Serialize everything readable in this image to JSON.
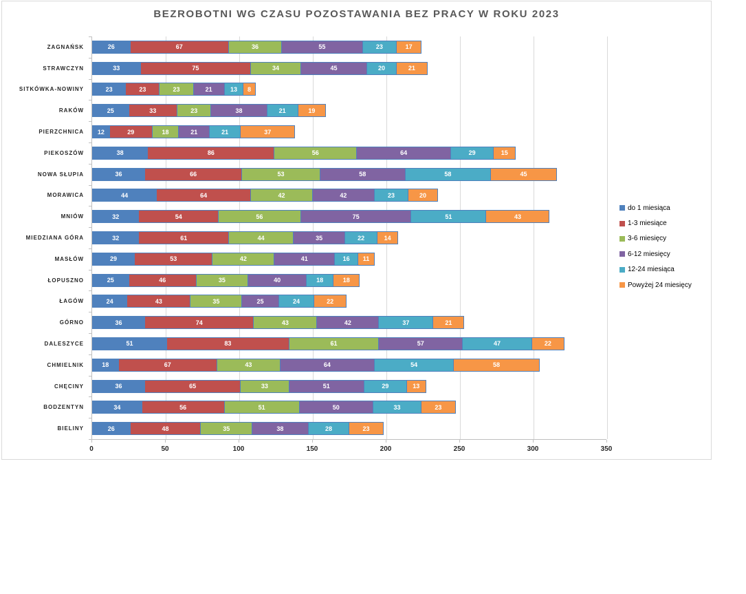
{
  "chart_data": {
    "type": "bar",
    "orientation": "horizontal",
    "stacked": true,
    "title": "BEZROBOTNI WG CZASU POZOSTAWANIA BEZ PRACY W ROKU 2023",
    "categories": [
      "ZAGNAŃSK",
      "STRAWCZYN",
      "SITKÓWKA-NOWINY",
      "RAKÓW",
      "PIERZCHNICA",
      "PIEKOSZÓW",
      "NOWA SŁUPIA",
      "MORAWICA",
      "MNIÓW",
      "MIEDZIANA GÓRA",
      "MASŁÓW",
      "ŁOPUSZNO",
      "ŁAGÓW",
      "GÓRNO",
      "DALESZYCE",
      "CHMIELNIK",
      "CHĘCINY",
      "BODZENTYN",
      "BIELINY"
    ],
    "series": [
      {
        "name": "do 1 miesiąca",
        "color": "#4F81BD",
        "values": [
          26,
          33,
          23,
          25,
          12,
          38,
          36,
          44,
          32,
          32,
          29,
          25,
          24,
          36,
          51,
          18,
          36,
          34,
          26
        ]
      },
      {
        "name": "1-3 miesiące",
        "color": "#C0504D",
        "values": [
          67,
          75,
          23,
          33,
          29,
          86,
          66,
          64,
          54,
          61,
          53,
          46,
          43,
          74,
          83,
          67,
          65,
          56,
          48
        ]
      },
      {
        "name": "3-6 miesięcy",
        "color": "#9BBB59",
        "values": [
          36,
          34,
          23,
          23,
          18,
          56,
          53,
          42,
          56,
          44,
          42,
          35,
          35,
          43,
          61,
          43,
          33,
          51,
          35
        ]
      },
      {
        "name": "6-12 miesięcy",
        "color": "#8064A2",
        "values": [
          55,
          45,
          21,
          38,
          21,
          64,
          58,
          42,
          75,
          35,
          41,
          40,
          25,
          42,
          57,
          64,
          51,
          50,
          38
        ]
      },
      {
        "name": "12-24 miesiąca",
        "color": "#4BACC6",
        "values": [
          23,
          20,
          13,
          21,
          21,
          29,
          58,
          23,
          51,
          22,
          16,
          18,
          24,
          37,
          47,
          54,
          29,
          33,
          28
        ]
      },
      {
        "name": "Powyżej 24 miesięcy",
        "color": "#F79646",
        "values": [
          17,
          21,
          8,
          19,
          37,
          15,
          45,
          20,
          43,
          14,
          11,
          18,
          22,
          21,
          22,
          58,
          13,
          23,
          23
        ]
      }
    ],
    "xlim": [
      0,
      350
    ],
    "x_ticks": [
      0,
      50,
      100,
      150,
      200,
      250,
      300,
      350
    ],
    "grid": true,
    "legend_position": "right",
    "data_labels": true,
    "segment_border_color": "#4F81BD",
    "gridline_color": "#D9D9D9",
    "title_color": "#595959"
  }
}
